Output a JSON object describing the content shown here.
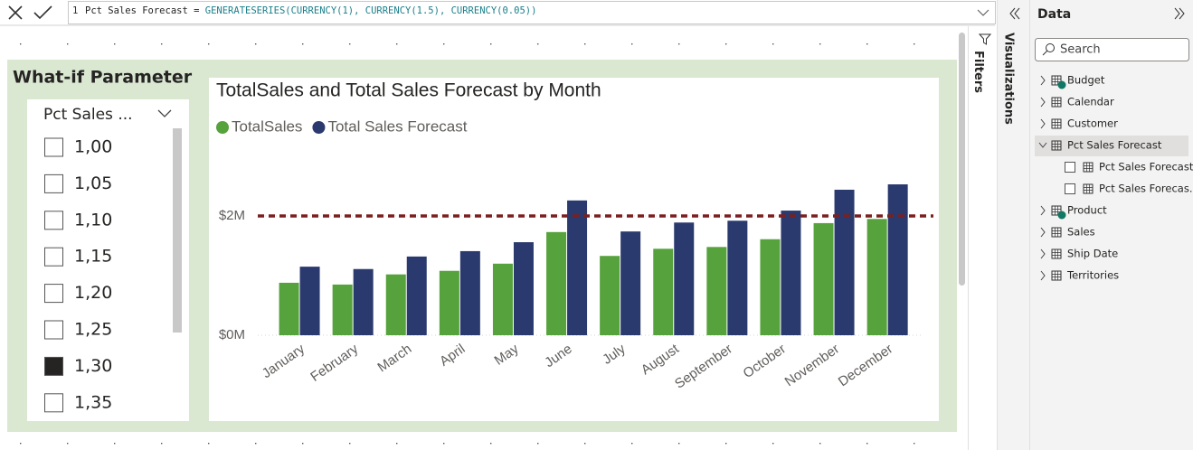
{
  "formula": {
    "line": "1",
    "name_part": "Pct Sales Forecast =",
    "function_part": "GENERATESERIES(CURRENCY(1), CURRENCY(1.5), CURRENCY(0.05))"
  },
  "canvas": {
    "section_title": "What-if Parameter"
  },
  "slicer": {
    "title": "Pct Sales ...",
    "items": [
      {
        "label": "1,00",
        "selected": false
      },
      {
        "label": "1,05",
        "selected": false
      },
      {
        "label": "1,10",
        "selected": false
      },
      {
        "label": "1,15",
        "selected": false
      },
      {
        "label": "1,20",
        "selected": false
      },
      {
        "label": "1,25",
        "selected": false
      },
      {
        "label": "1,30",
        "selected": true
      },
      {
        "label": "1,35",
        "selected": false
      }
    ]
  },
  "chart_data": {
    "type": "bar",
    "title": "TotalSales and Total Sales Forecast by Month",
    "categories": [
      "January",
      "February",
      "March",
      "April",
      "May",
      "June",
      "July",
      "August",
      "September",
      "October",
      "November",
      "December"
    ],
    "series": [
      {
        "name": "TotalSales",
        "color": "#56a23c",
        "values": [
          880000,
          850000,
          1020000,
          1080000,
          1200000,
          1730000,
          1330000,
          1450000,
          1480000,
          1610000,
          1880000,
          1950000
        ]
      },
      {
        "name": "Total Sales Forecast",
        "color": "#2b3a6e",
        "values": [
          1150000,
          1110000,
          1320000,
          1410000,
          1560000,
          2260000,
          1740000,
          1890000,
          1920000,
          2090000,
          2440000,
          2530000
        ]
      }
    ],
    "ylim": [
      0,
      2750000
    ],
    "yticks": [
      {
        "value": 0,
        "label": "$0M"
      },
      {
        "value": 2000000,
        "label": "$2M"
      }
    ],
    "grid": true,
    "legend": "top-left",
    "reference_line": {
      "value": 2000000,
      "color": "#7b1f1f"
    }
  },
  "panes": {
    "filters": "Filters",
    "visualizations": "Visualizations",
    "data": "Data",
    "search": "Search"
  },
  "fields": [
    {
      "name": "Budget",
      "badge": true
    },
    {
      "name": "Calendar"
    },
    {
      "name": "Customer"
    },
    {
      "name": "Pct Sales Forecast",
      "selected": true,
      "children": [
        {
          "name": "Pct Sales Forecast"
        },
        {
          "name": "Pct Sales Forecas..."
        }
      ]
    },
    {
      "name": "Product",
      "badge": true
    },
    {
      "name": "Sales"
    },
    {
      "name": "Ship Date"
    },
    {
      "name": "Territories"
    }
  ]
}
